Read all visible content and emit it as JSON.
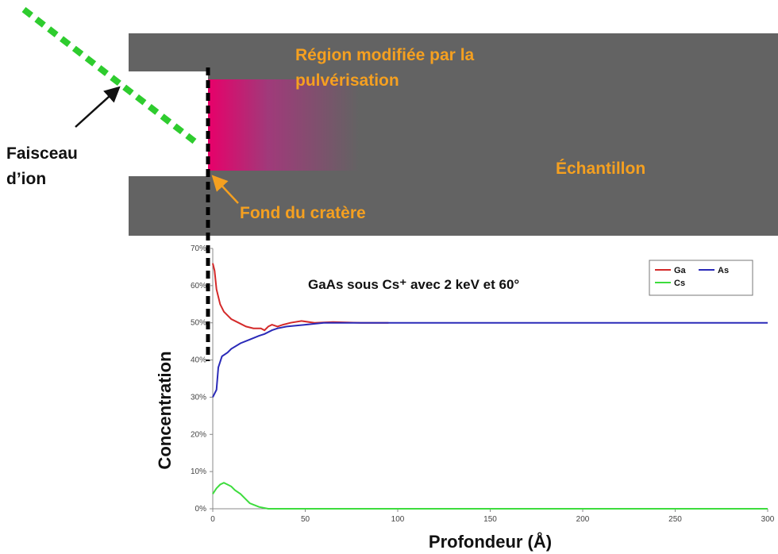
{
  "diagram": {
    "region_label": [
      "Région modifiée par la",
      "pulvérisation"
    ],
    "sample_label": "Échantillon",
    "crater_label": "Fond du cratère",
    "beam_label": [
      "Faisceau",
      "d’ion"
    ]
  },
  "chart_data": {
    "type": "line",
    "annotation": "GaAs sous Cs⁺ avec 2 keV et 60°",
    "x_label": "Profondeur (Å)",
    "y_label": "Concentration",
    "xlim": [
      0,
      300
    ],
    "xticks": [
      0,
      50,
      100,
      150,
      200,
      250,
      300
    ],
    "ylim": [
      0,
      70
    ],
    "yticks": [
      {
        "value": 0,
        "label": "0%"
      },
      {
        "value": 10,
        "label": "10%"
      },
      {
        "value": 20,
        "label": "20%"
      },
      {
        "value": 30,
        "label": "30%"
      },
      {
        "value": 40,
        "label": "40%"
      },
      {
        "value": 50,
        "label": "50%"
      },
      {
        "value": 60,
        "label": "60%"
      },
      {
        "value": 70,
        "label": "70%"
      }
    ],
    "legend": "top-right",
    "series": [
      {
        "name": "Ga",
        "color": "#d42a2a",
        "x": [
          0,
          1,
          2,
          4,
          6,
          8,
          10,
          14,
          18,
          22,
          26,
          28,
          30,
          32,
          35,
          38,
          42,
          48,
          55,
          65,
          80,
          95
        ],
        "values": [
          66,
          64,
          59,
          55,
          53,
          52,
          51,
          50,
          49,
          48.5,
          48.5,
          48,
          49,
          49.5,
          49,
          49.5,
          50,
          50.5,
          50,
          50.2,
          50,
          50
        ]
      },
      {
        "name": "As",
        "color": "#2a2ab8",
        "x": [
          0,
          2,
          3,
          5,
          8,
          10,
          15,
          20,
          25,
          28,
          32,
          35,
          40,
          50,
          60,
          100,
          300
        ],
        "values": [
          30,
          32,
          38,
          41,
          42,
          43,
          44.5,
          45.5,
          46.5,
          47,
          48,
          48.5,
          49,
          49.5,
          50,
          50,
          50
        ]
      },
      {
        "name": "Cs",
        "color": "#3ddc3d",
        "x": [
          0,
          2,
          4,
          6,
          8,
          10,
          12,
          15,
          18,
          20,
          25,
          30,
          300
        ],
        "values": [
          4,
          5.5,
          6.5,
          7,
          6.5,
          6,
          5,
          4,
          2.5,
          1.5,
          0.5,
          0,
          0
        ]
      }
    ]
  }
}
